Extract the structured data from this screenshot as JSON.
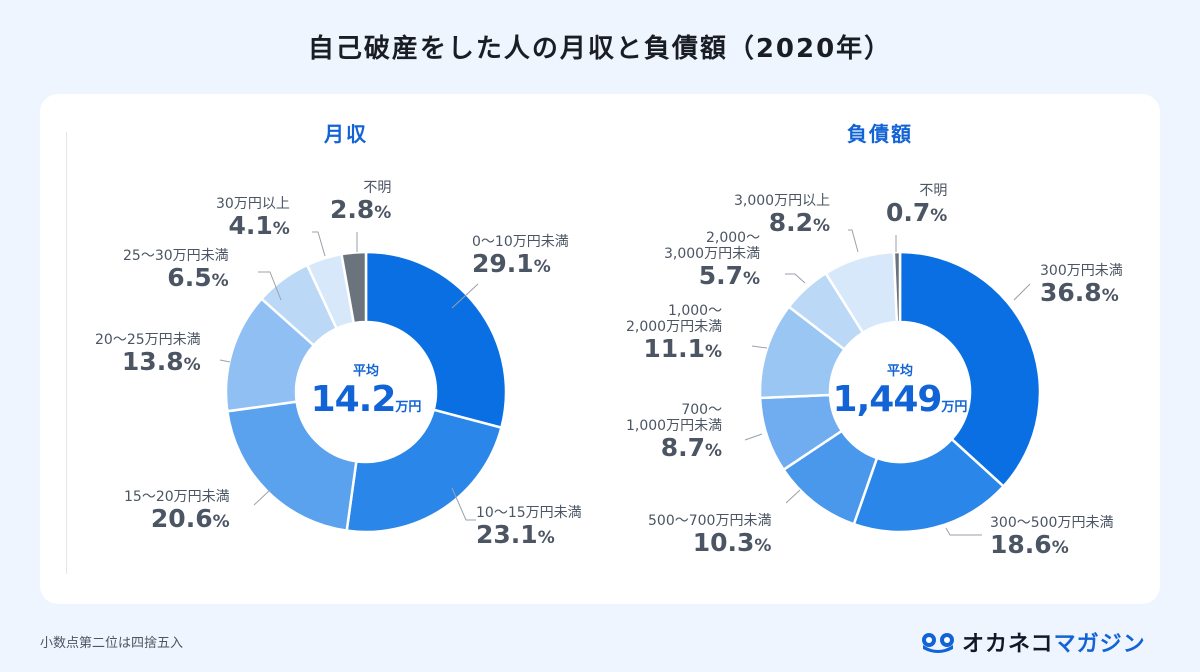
{
  "title": "自己破産をした人の月収と負債額（2020年）",
  "footnote": "小数点第二位は四捨五入",
  "logo": {
    "part1": "オカネコ",
    "part2": "マガジン"
  },
  "colors": {
    "accent": "#1264d6",
    "unknown": "#6b737c"
  },
  "chart_data": [
    {
      "type": "pie",
      "subtype": "donut",
      "title": "月収",
      "center_caption": "平均",
      "center_value": "14.2",
      "center_unit": "万円",
      "unit": "%",
      "categories": [
        "0〜10万円未満",
        "10〜15万円未満",
        "15〜20万円未満",
        "20〜25万円未満",
        "25〜30万円未満",
        "30万円以上",
        "不明"
      ],
      "values": [
        29.1,
        23.1,
        20.6,
        13.8,
        6.5,
        4.1,
        2.8
      ],
      "value_labels": [
        "29.1",
        "23.1",
        "20.6",
        "13.8",
        "6.5",
        "4.1",
        "2.8"
      ],
      "colors": [
        "#0a6fe3",
        "#2a86e8",
        "#5aa2ee",
        "#8fbff3",
        "#bcd8f7",
        "#d7e8fb",
        "#6b737c"
      ]
    },
    {
      "type": "pie",
      "subtype": "donut",
      "title": "負債額",
      "center_caption": "平均",
      "center_value": "1,449",
      "center_unit": "万円",
      "unit": "%",
      "categories": [
        "300万円未満",
        "300〜500万円未満",
        "500〜700万円未満",
        "700〜1,000万円未満",
        "1,000〜2,000万円未満",
        "2,000〜3,000万円未満",
        "3,000万円以上",
        "不明"
      ],
      "category_lines": [
        [
          "300万円未満"
        ],
        [
          "300〜500万円未満"
        ],
        [
          "500〜700万円未満"
        ],
        [
          "700〜",
          "1,000万円未満"
        ],
        [
          "1,000〜",
          "2,000万円未満"
        ],
        [
          "2,000〜",
          "3,000万円未満"
        ],
        [
          "3,000万円以上"
        ],
        [
          "不明"
        ]
      ],
      "values": [
        36.8,
        18.6,
        10.3,
        8.7,
        11.1,
        5.7,
        8.2,
        0.7
      ],
      "value_labels": [
        "36.8",
        "18.6",
        "10.3",
        "8.7",
        "11.1",
        "5.7",
        "8.2",
        "0.7"
      ],
      "colors": [
        "#0a6fe3",
        "#2a86e8",
        "#4a98ec",
        "#6fadf0",
        "#9ac6f4",
        "#bcd8f7",
        "#d7e8fb",
        "#6b737c"
      ]
    }
  ]
}
